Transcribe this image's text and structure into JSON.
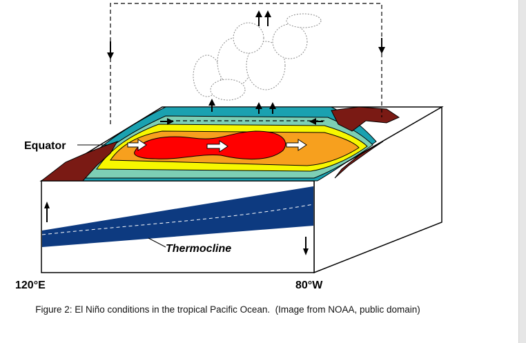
{
  "labels": {
    "equator": "Equator",
    "thermocline": "Thermocline",
    "west": "120°E",
    "east": "80°W"
  },
  "caption": "Figure 2: El Niño conditions in the tropical Pacific Ocean.  (Image from NOAA, public domain)"
}
